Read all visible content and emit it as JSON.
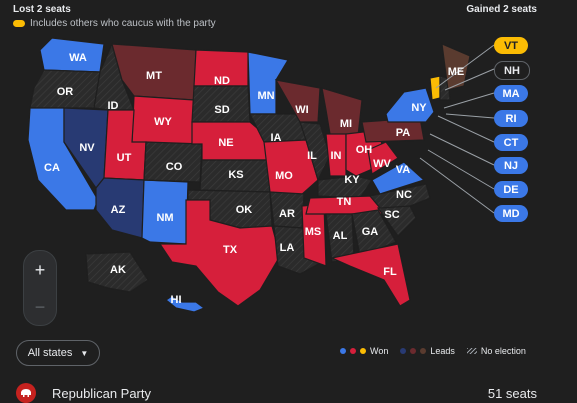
{
  "header": {
    "left": "Lost 2 seats",
    "right": "Gained 2 seats",
    "note": "Includes others who caucus with the party"
  },
  "colors": {
    "won_blue": "#3b78e7",
    "won_red": "#d61f3b",
    "won_yellow": "#fbbc04",
    "leads_blue": "#283a73",
    "leads_red": "#6b2a2e",
    "leads_brown": "#5a3b2f",
    "no_election": "#2b2b2b"
  },
  "states": {
    "WA": "won_blue",
    "OR": "no_election",
    "CA": "won_blue",
    "NV": "leads_blue",
    "ID": "no_election",
    "MT": "leads_red",
    "WY": "won_red",
    "UT": "won_red",
    "AZ": "leads_blue",
    "NM": "won_blue",
    "CO": "no_election",
    "ND": "won_red",
    "SD": "no_election",
    "NE": "won_red",
    "KS": "no_election",
    "OK": "no_election",
    "TX": "won_red",
    "MN": "won_blue",
    "IA": "no_election",
    "MO": "won_red",
    "AR": "no_election",
    "LA": "no_election",
    "WI": "leads_red",
    "IL": "no_election",
    "MS": "won_red",
    "MI": "leads_red",
    "IN": "won_red",
    "OH": "won_red",
    "KY": "no_election",
    "TN": "won_red",
    "AL": "no_election",
    "GA": "no_election",
    "FL": "won_red",
    "SC": "no_election",
    "NC": "no_election",
    "VA": "won_blue",
    "WV": "won_red",
    "PA": "leads_red",
    "NY": "won_blue",
    "VT": "won_yellow",
    "NH": "no_election",
    "ME": "leads_brown",
    "AK": "no_election",
    "HI": "won_blue"
  },
  "callouts": [
    {
      "label": "VT",
      "status": "won_yellow"
    },
    {
      "label": "NH",
      "status": "no_election"
    },
    {
      "label": "MA",
      "status": "won_blue"
    },
    {
      "label": "RI",
      "status": "won_blue"
    },
    {
      "label": "CT",
      "status": "won_blue"
    },
    {
      "label": "NJ",
      "status": "won_blue"
    },
    {
      "label": "DE",
      "status": "won_blue"
    },
    {
      "label": "MD",
      "status": "won_blue"
    }
  ],
  "zoom": {
    "in": "+",
    "out": "−"
  },
  "filter": {
    "label": "All states",
    "arrow": "▼"
  },
  "legend": {
    "won": "Won",
    "leads": "Leads",
    "no_election": "No election"
  },
  "party": {
    "name": "Republican Party",
    "seats": "51 seats"
  }
}
